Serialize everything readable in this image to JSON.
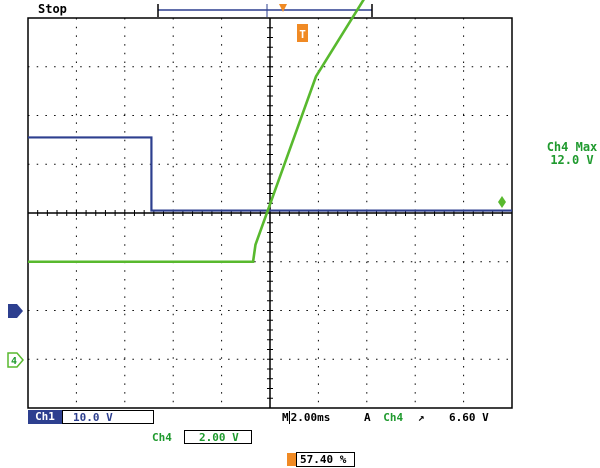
{
  "status": "Stop",
  "colors": {
    "grid": "#000000",
    "ch1": "#2d3f8f",
    "ch4": "#58b92e",
    "trigger": "#f08a24",
    "ch4_text": "#1f9a2e",
    "ch1_text": "#2d3f8f"
  },
  "markers": {
    "trigger_pos_label": "T",
    "ch1_label": "1",
    "ch4_label": "4"
  },
  "ch4_measure": {
    "title": "Ch4 Max",
    "value": "12.0 V"
  },
  "readout": {
    "ch1_tag": "Ch1",
    "ch1_scale": "10.0 V",
    "ch4_tag": "Ch4",
    "ch4_scale": "2.00 V",
    "timebase_prefix": "M",
    "timebase": "2.00ms",
    "trigger_mode": "A",
    "trigger_source": "Ch4",
    "trigger_slope": "rising-edge-icon",
    "trigger_level": "6.60 V",
    "trigger_position": "57.40 %"
  },
  "chart_data": {
    "type": "line",
    "grid_divisions": {
      "x": 10,
      "y": 8
    },
    "series": [
      {
        "name": "Ch1",
        "x_div": [
          -5,
          -2.45,
          -2.45,
          -2.35,
          5
        ],
        "y_div": [
          1.55,
          1.55,
          0.05,
          0.05,
          0.05
        ]
      },
      {
        "name": "Ch4",
        "x_div": [
          -5,
          -0.35,
          -0.3,
          0.95,
          2.2,
          5
        ],
        "y_div": [
          -1.0,
          -1.0,
          -0.65,
          2.8,
          4.8,
          4.8
        ]
      }
    ]
  }
}
